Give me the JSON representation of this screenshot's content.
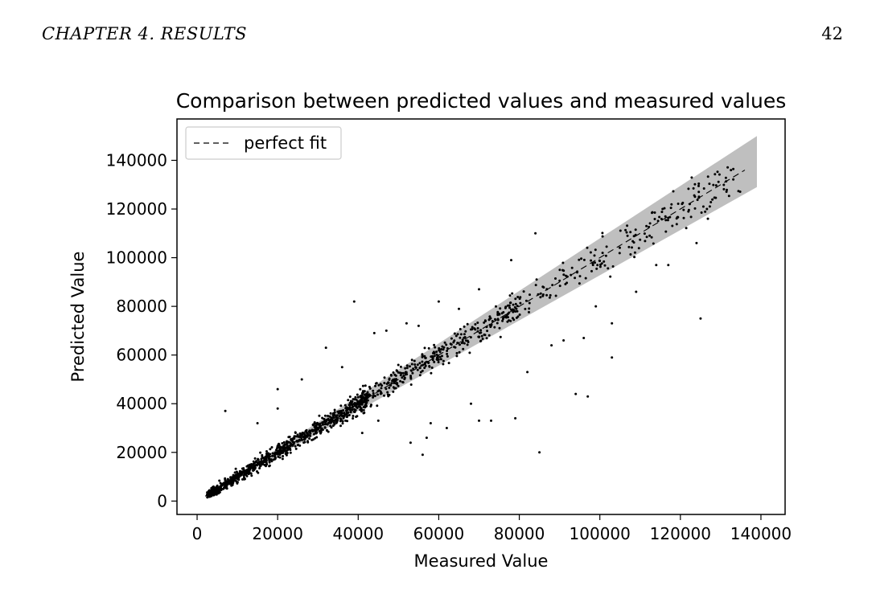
{
  "header": {
    "chapter": "CHAPTER 4.   RESULTS",
    "page_number": "42"
  },
  "chart_data": {
    "type": "scatter",
    "title": "Comparison between predicted values and measured values",
    "xlabel": "Measured Value",
    "ylabel": "Predicted Value",
    "xlim": [
      -5000,
      146000
    ],
    "ylim": [
      -5500,
      157000
    ],
    "xticks": [
      0,
      20000,
      40000,
      60000,
      80000,
      100000,
      120000,
      140000
    ],
    "yticks": [
      0,
      20000,
      40000,
      60000,
      80000,
      100000,
      120000,
      140000
    ],
    "grid": false,
    "legend": {
      "location": "upper-left",
      "entries": [
        {
          "label": "perfect fit",
          "style": "dashed-line"
        }
      ]
    },
    "band": {
      "description": "shaded confidence band around perfect fit",
      "color": "#bfbfbf",
      "x": [
        2000,
        139000
      ],
      "upper": [
        2200,
        150000
      ],
      "lower": [
        1800,
        129000
      ]
    },
    "fit_line": {
      "x": [
        2000,
        136000
      ],
      "y": [
        2000,
        136000
      ]
    },
    "outliers": [
      [
        7000,
        37000
      ],
      [
        39000,
        82000
      ],
      [
        60000,
        82000
      ],
      [
        82000,
        53000
      ],
      [
        85000,
        20000
      ],
      [
        56000,
        19000
      ],
      [
        53000,
        24000
      ],
      [
        94000,
        44000
      ],
      [
        97000,
        43000
      ],
      [
        103000,
        59000
      ],
      [
        103000,
        73000
      ],
      [
        125000,
        75000
      ],
      [
        124000,
        106000
      ],
      [
        122000,
        119000
      ],
      [
        96000,
        67000
      ],
      [
        84000,
        110000
      ],
      [
        78000,
        99000
      ],
      [
        70000,
        87000
      ],
      [
        32000,
        63000
      ],
      [
        44000,
        69000
      ],
      [
        47000,
        70000
      ],
      [
        68000,
        40000
      ],
      [
        70000,
        33000
      ],
      [
        73000,
        33000
      ],
      [
        79000,
        34000
      ],
      [
        62000,
        30000
      ],
      [
        57000,
        26000
      ],
      [
        114000,
        97000
      ],
      [
        117000,
        97000
      ],
      [
        109000,
        86000
      ],
      [
        99000,
        80000
      ],
      [
        65000,
        79000
      ],
      [
        52000,
        73000
      ],
      [
        55000,
        72000
      ],
      [
        36000,
        55000
      ],
      [
        26000,
        50000
      ],
      [
        20000,
        46000
      ],
      [
        15000,
        32000
      ],
      [
        88000,
        64000
      ],
      [
        91000,
        66000
      ],
      [
        58000,
        32000
      ],
      [
        45000,
        33000
      ],
      [
        41000,
        28000
      ],
      [
        20000,
        38000
      ]
    ],
    "point_color": "#000000"
  }
}
